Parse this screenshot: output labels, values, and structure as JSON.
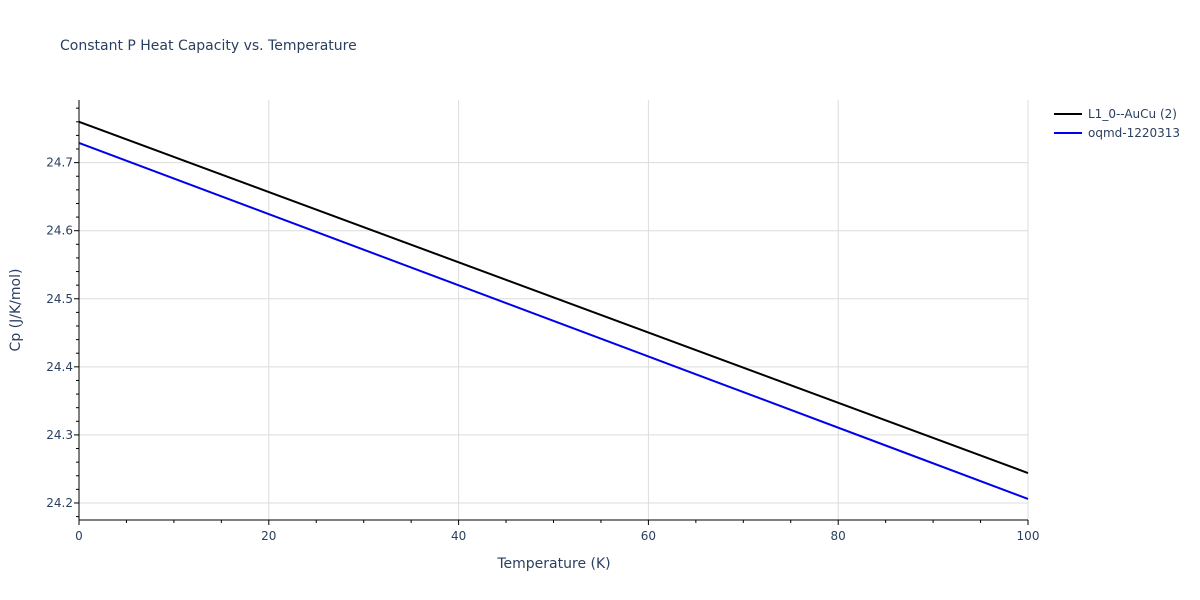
{
  "chart_data": {
    "type": "line",
    "title": "Constant P Heat Capacity vs. Temperature",
    "xlabel": "Temperature (K)",
    "ylabel": "Cp (J/K/mol)",
    "xlim": [
      0,
      100
    ],
    "ylim": [
      24.175,
      24.792
    ],
    "xticks": [
      0,
      20,
      40,
      60,
      80,
      100
    ],
    "yticks": [
      24.2,
      24.3,
      24.4,
      24.5,
      24.6,
      24.7
    ],
    "ytick_labels": [
      "24.2",
      "24.3",
      "24.4",
      "24.5",
      "24.6",
      "24.7"
    ],
    "grid": true,
    "legend_position": "top-right",
    "series": [
      {
        "name": "L1_0--AuCu (2)",
        "color": "#000000",
        "x": [
          0,
          100
        ],
        "y": [
          24.76,
          24.244
        ]
      },
      {
        "name": "oqmd-1220313",
        "color": "#0000ee",
        "x": [
          0,
          100
        ],
        "y": [
          24.729,
          24.206
        ]
      }
    ]
  }
}
